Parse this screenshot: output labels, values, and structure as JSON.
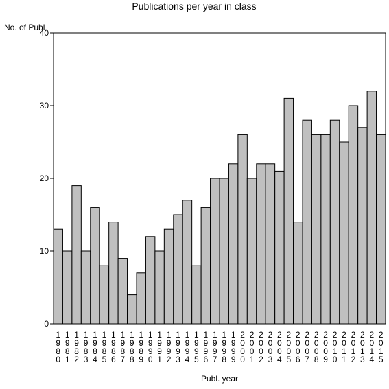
{
  "chart_data": {
    "type": "bar",
    "title": "Publications per year in class",
    "ylabel": "No. of Publ.",
    "xlabel": "Publ. year",
    "ylim": [
      0,
      40
    ],
    "yticks": [
      0,
      10,
      20,
      30,
      40
    ],
    "categories": [
      "1980",
      "1981",
      "1982",
      "1983",
      "1984",
      "1985",
      "1986",
      "1987",
      "1988",
      "1989",
      "1990",
      "1991",
      "1992",
      "1993",
      "1994",
      "1995",
      "1996",
      "1997",
      "1998",
      "1999",
      "2000",
      "2001",
      "2002",
      "2003",
      "2004",
      "2005",
      "2006",
      "2007",
      "2008",
      "2009",
      "2010",
      "2011",
      "2012",
      "2013",
      "2014",
      "2015"
    ],
    "values": [
      13,
      10,
      19,
      10,
      16,
      8,
      14,
      9,
      4,
      7,
      12,
      10,
      13,
      15,
      17,
      8,
      16,
      20,
      20,
      22,
      26,
      20,
      22,
      22,
      21,
      31,
      14,
      28,
      26,
      26,
      28,
      25,
      30,
      27,
      32,
      26
    ],
    "bar_color": "#c0c0c0",
    "bar_stroke": "#000000",
    "grid": false,
    "legend": "none"
  }
}
